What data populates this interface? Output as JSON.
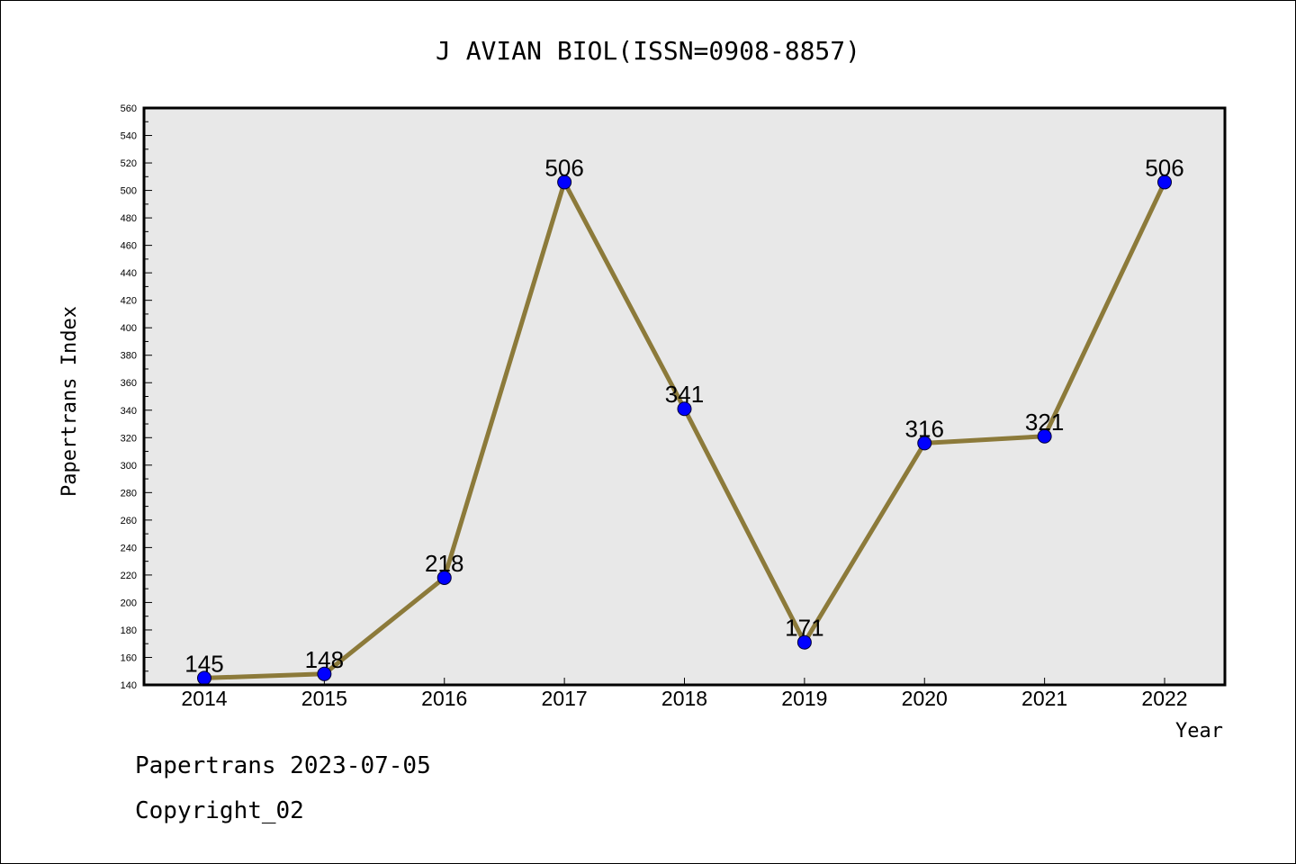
{
  "chart_data": {
    "type": "line",
    "title": "J AVIAN BIOL(ISSN=0908-8857)",
    "xlabel": "Year",
    "ylabel": "Papertrans Index",
    "ylim": [
      140,
      560
    ],
    "y_major_step": 20,
    "y_minor_step": 10,
    "grid": false,
    "categories": [
      "2014",
      "2015",
      "2016",
      "2017",
      "2018",
      "2019",
      "2020",
      "2021",
      "2022"
    ],
    "series": [
      {
        "values": [
          145,
          148,
          218,
          506,
          341,
          171,
          316,
          321,
          506
        ]
      }
    ],
    "colors": {
      "line": "#8c7a3a",
      "marker": "#0000ff",
      "plot_background": "#e8e8e8"
    }
  },
  "footer": {
    "line1": "Papertrans 2023-07-05",
    "line2": "Copyright_02"
  }
}
